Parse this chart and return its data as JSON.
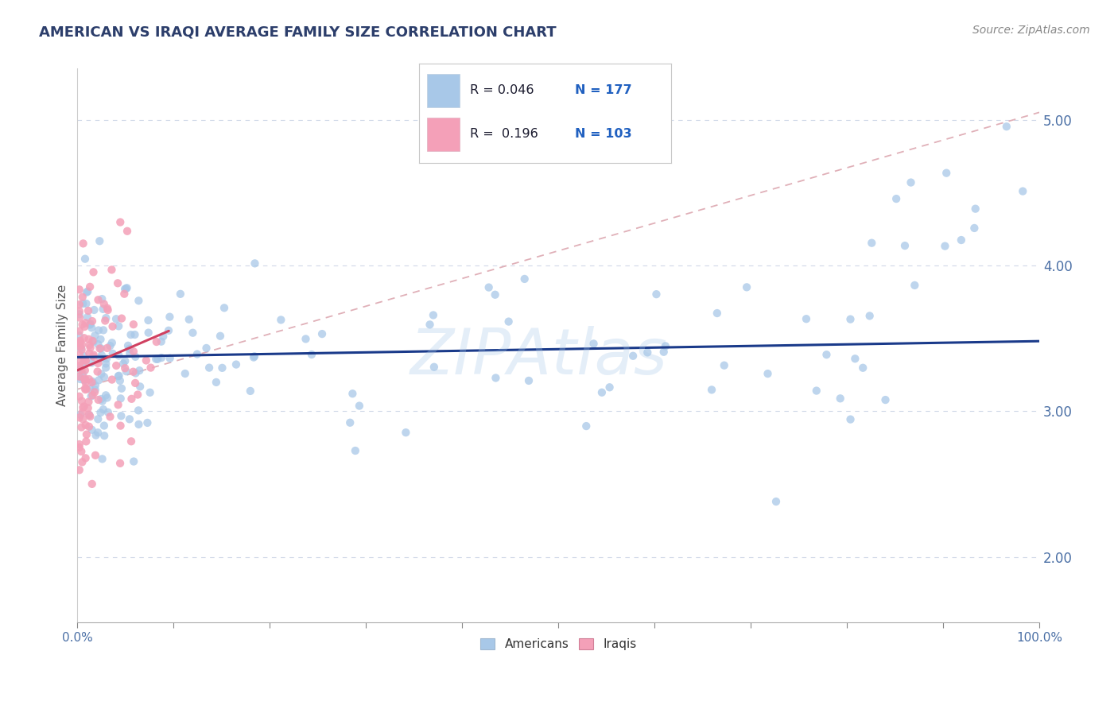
{
  "title": "AMERICAN VS IRAQI AVERAGE FAMILY SIZE CORRELATION CHART",
  "source_text": "Source: ZipAtlas.com",
  "ylabel": "Average Family Size",
  "xlim": [
    0.0,
    1.0
  ],
  "ylim": [
    1.55,
    5.35
  ],
  "yticks": [
    2.0,
    3.0,
    4.0,
    5.0
  ],
  "yticklabels": [
    "2.00",
    "3.00",
    "4.00",
    "5.00"
  ],
  "american_color": "#a8c8e8",
  "iraqi_color": "#f4a0b8",
  "american_trend_color": "#1a3a8a",
  "iraqi_trend_color": "#d04060",
  "dashed_trend_color": "#e0b0b8",
  "watermark": "ZIPAtlas",
  "title_color": "#2c3e6b",
  "tick_color": "#4a6fa5",
  "grid_color": "#d0d8e8",
  "background_color": "#ffffff",
  "legend_R_color": "#1a1a2e",
  "legend_N_color": "#2060c0",
  "source_color": "#888888",
  "ylabel_color": "#555555"
}
